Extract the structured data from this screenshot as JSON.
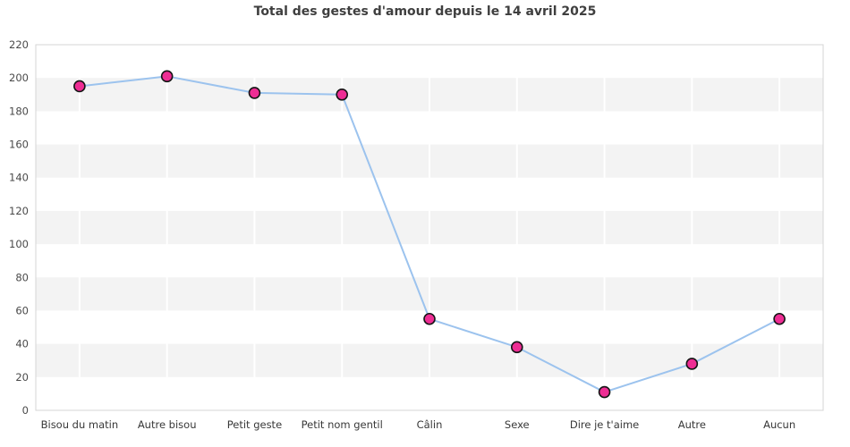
{
  "title": "Total des gestes d'amour depuis le 14 avril 2025",
  "chart_data": {
    "type": "line",
    "title": "Total des gestes d'amour depuis le 14 avril 2025",
    "categories": [
      "Bisou du matin",
      "Autre bisou",
      "Petit geste",
      "Petit nom gentil",
      "Câlin",
      "Sexe",
      "Dire je t'aime",
      "Autre",
      "Aucun"
    ],
    "series": [
      {
        "name": "Total des gestes d'amour",
        "values": [
          195,
          201,
          191,
          190,
          55,
          38,
          11,
          28,
          55
        ]
      }
    ],
    "xlabel": "",
    "ylabel": "",
    "ylim": [
      0,
      220
    ],
    "ytick_step": 20,
    "yticks": [
      0,
      20,
      40,
      60,
      80,
      100,
      120,
      140,
      160,
      180,
      200,
      220
    ],
    "legend": "none",
    "grid": "alternating-horizontal-bands-with-white-vertical-gridlines-at-category-centers",
    "marker_shape": "circle",
    "colors": {
      "line": "#9cc3ee",
      "marker_fill": "#ee2d94",
      "marker_border": "#151515",
      "band": "#f3f3f3",
      "plot_border": "#d5d5d5",
      "v_gridline": "#ffffff",
      "y_tick_text": "#4a4a4a",
      "x_label_text": "#383838",
      "title_text": "#3f3f3f",
      "background": "#ffffff"
    }
  }
}
